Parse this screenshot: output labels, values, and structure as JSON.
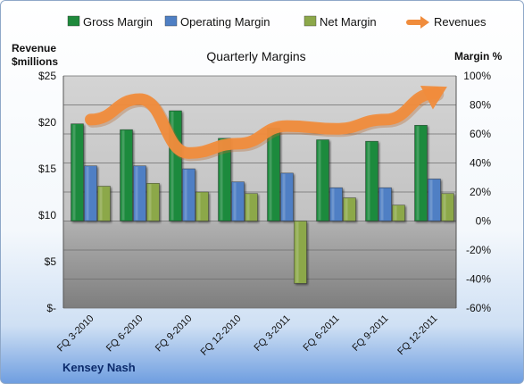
{
  "chart_data": {
    "type": "bar",
    "title": "Quarterly Margins",
    "categories": [
      "FQ 3-2010",
      "FQ 6-2010",
      "FQ 9-2010",
      "FQ 12-2010",
      "FQ 3-2011",
      "FQ 6-2011",
      "FQ 9-2011",
      "FQ 12-2011"
    ],
    "series": [
      {
        "name": "Gross Margin",
        "kind": "bar",
        "color": "#1f8a3c",
        "values": [
          67,
          63,
          76,
          57,
          64,
          56,
          55,
          66
        ]
      },
      {
        "name": "Operating Margin",
        "kind": "bar",
        "color": "#4f7fc4",
        "values": [
          38,
          38,
          36,
          27,
          33,
          23,
          23,
          29
        ]
      },
      {
        "name": "Net Margin",
        "kind": "bar",
        "color": "#8ca84a",
        "values": [
          24,
          26,
          20,
          19,
          -43,
          16,
          11,
          19
        ]
      },
      {
        "name": "Revenues",
        "kind": "line",
        "color": "#f08c3c",
        "axis": "left",
        "values": [
          20.3,
          22.5,
          16.7,
          17.7,
          19.6,
          19.3,
          20.3,
          23.1
        ]
      }
    ],
    "left_axis": {
      "label_line1": "Revenue",
      "label_line2": "$millions",
      "min": 0,
      "max": 25,
      "ticks": [
        "$-",
        "$5",
        "$10",
        "$15",
        "$20",
        "$25"
      ]
    },
    "right_axis": {
      "label": "Margin %",
      "min": -60,
      "max": 100,
      "ticks": [
        "-60%",
        "-40%",
        "-20%",
        "0%",
        "20%",
        "40%",
        "60%",
        "80%",
        "100%"
      ]
    },
    "legend_position": "top",
    "grid": true
  },
  "footer": {
    "company": "Kensey Nash"
  }
}
